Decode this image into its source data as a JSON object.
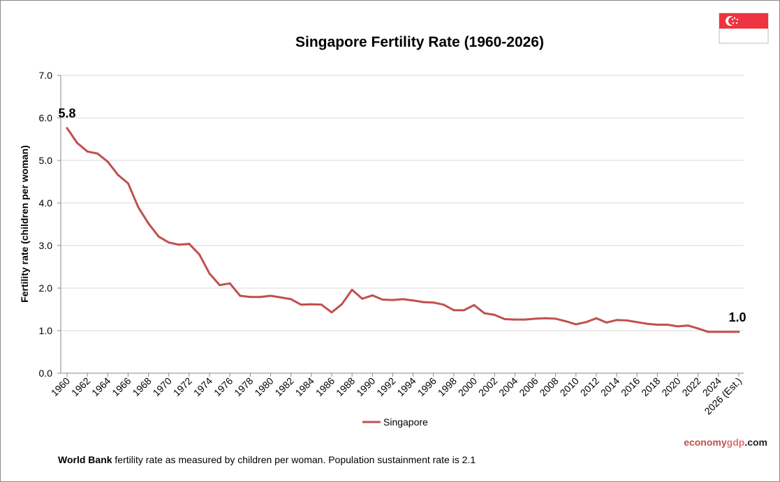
{
  "chart_data": {
    "type": "line",
    "title": "Singapore Fertility Rate (1960-2026)",
    "xlabel": "",
    "ylabel": "Fertility rate (children per woman)",
    "ylim": [
      0,
      7
    ],
    "yticks": [
      "0.0",
      "1.0",
      "2.0",
      "3.0",
      "4.0",
      "5.0",
      "6.0",
      "7.0"
    ],
    "grid": true,
    "legend_position": "bottom",
    "x": [
      1960,
      1961,
      1962,
      1963,
      1964,
      1965,
      1966,
      1967,
      1968,
      1969,
      1970,
      1971,
      1972,
      1973,
      1974,
      1975,
      1976,
      1977,
      1978,
      1979,
      1980,
      1981,
      1982,
      1983,
      1984,
      1985,
      1986,
      1987,
      1988,
      1989,
      1990,
      1991,
      1992,
      1993,
      1994,
      1995,
      1996,
      1997,
      1998,
      1999,
      2000,
      2001,
      2002,
      2003,
      2004,
      2005,
      2006,
      2007,
      2008,
      2009,
      2010,
      2011,
      2012,
      2013,
      2014,
      2015,
      2016,
      2017,
      2018,
      2019,
      2020,
      2021,
      2022,
      2023,
      2024,
      2025,
      2026
    ],
    "xtick_labels": [
      "1960",
      "1962",
      "1964",
      "1966",
      "1968",
      "1970",
      "1972",
      "1974",
      "1976",
      "1978",
      "1980",
      "1982",
      "1984",
      "1986",
      "1988",
      "1990",
      "1992",
      "1994",
      "1996",
      "1998",
      "2000",
      "2002",
      "2004",
      "2006",
      "2008",
      "2010",
      "2012",
      "2014",
      "2016",
      "2018",
      "2020",
      "2022",
      "2024",
      "2026 (Est.)"
    ],
    "series": [
      {
        "name": "Singapore",
        "color": "#c0504d",
        "values": [
          5.76,
          5.41,
          5.21,
          5.16,
          4.97,
          4.66,
          4.46,
          3.9,
          3.52,
          3.21,
          3.07,
          3.02,
          3.04,
          2.79,
          2.34,
          2.07,
          2.11,
          1.82,
          1.79,
          1.79,
          1.82,
          1.78,
          1.74,
          1.61,
          1.62,
          1.61,
          1.43,
          1.62,
          1.96,
          1.75,
          1.83,
          1.73,
          1.72,
          1.74,
          1.71,
          1.67,
          1.66,
          1.61,
          1.48,
          1.48,
          1.6,
          1.41,
          1.37,
          1.27,
          1.26,
          1.26,
          1.28,
          1.29,
          1.28,
          1.22,
          1.15,
          1.2,
          1.29,
          1.19,
          1.25,
          1.24,
          1.2,
          1.16,
          1.14,
          1.14,
          1.1,
          1.12,
          1.05,
          0.97,
          0.97,
          0.97,
          0.97
        ]
      }
    ],
    "annotations": [
      {
        "label": "5.8",
        "x": 1960
      },
      {
        "label": "1.0",
        "x": 2026
      }
    ]
  },
  "flag": {
    "country": "Singapore",
    "colors": {
      "red": "#ef3340",
      "white": "#ffffff"
    }
  },
  "brand": {
    "part1": "economy",
    "part2": "gdp",
    "part3": ".com",
    "color1": "#c0504d",
    "color2": "#e07070",
    "color3": "#222222"
  },
  "footnote": {
    "bold": "World Bank",
    "text": " fertility rate as measured by children per woman.  Population sustainment rate is 2.1"
  }
}
